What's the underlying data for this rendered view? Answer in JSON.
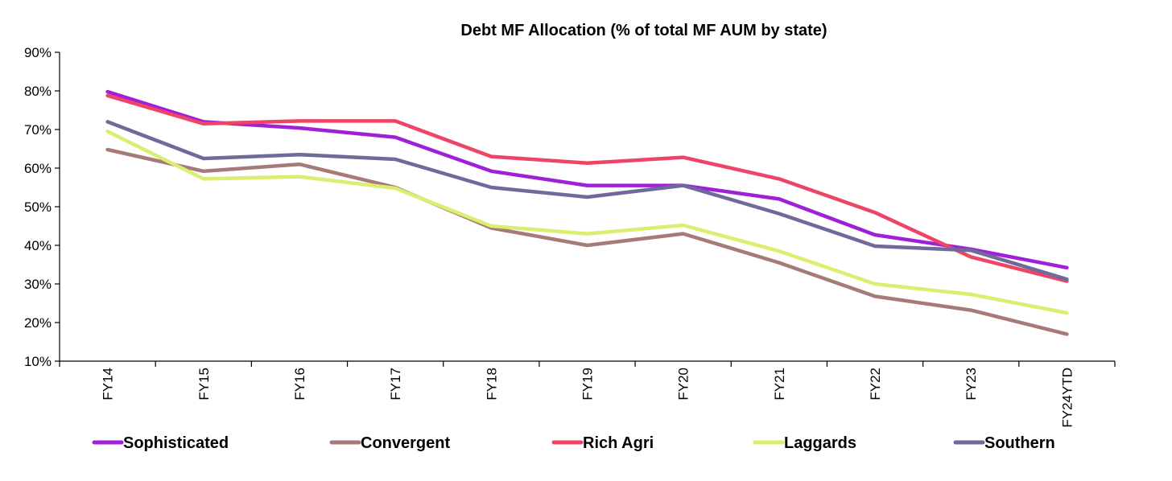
{
  "chart_data": {
    "type": "line",
    "title": "Debt MF Allocation (% of total MF AUM by state)",
    "xlabel": "",
    "ylabel": "",
    "categories": [
      "FY14",
      "FY15",
      "FY16",
      "FY17",
      "FY18",
      "FY19",
      "FY20",
      "FY21",
      "FY22",
      "FY23",
      "FY24YTD"
    ],
    "ylim": [
      10,
      90
    ],
    "yticks": [
      10,
      20,
      30,
      40,
      50,
      60,
      70,
      80,
      90
    ],
    "ytick_labels": [
      "10%",
      "20%",
      "30%",
      "40%",
      "50%",
      "60%",
      "70%",
      "80%",
      "90%"
    ],
    "grid": false,
    "legend_position": "bottom",
    "series": [
      {
        "name": "Sophisticated",
        "color": "#A020D8",
        "values": [
          79.8,
          72.0,
          70.4,
          68.0,
          59.2,
          55.5,
          55.5,
          52.0,
          42.7,
          39.0,
          34.2
        ]
      },
      {
        "name": "Convergent",
        "color": "#A57A78",
        "values": [
          64.8,
          59.2,
          61.0,
          55.0,
          44.5,
          40.0,
          43.0,
          35.5,
          26.8,
          23.2,
          17.0
        ]
      },
      {
        "name": "Rich Agri",
        "color": "#EE4466",
        "values": [
          78.8,
          71.5,
          72.2,
          72.2,
          63.0,
          61.3,
          62.8,
          57.2,
          48.5,
          37.0,
          30.7
        ]
      },
      {
        "name": "Laggards",
        "color": "#DCEE70",
        "values": [
          69.5,
          57.2,
          57.8,
          54.8,
          45.0,
          43.0,
          45.2,
          38.5,
          30.0,
          27.3,
          22.5
        ]
      },
      {
        "name": "Southern",
        "color": "#6E6A9A",
        "values": [
          72.0,
          62.5,
          63.5,
          62.3,
          55.0,
          52.5,
          55.5,
          48.2,
          39.8,
          38.7,
          31.2
        ]
      }
    ]
  }
}
